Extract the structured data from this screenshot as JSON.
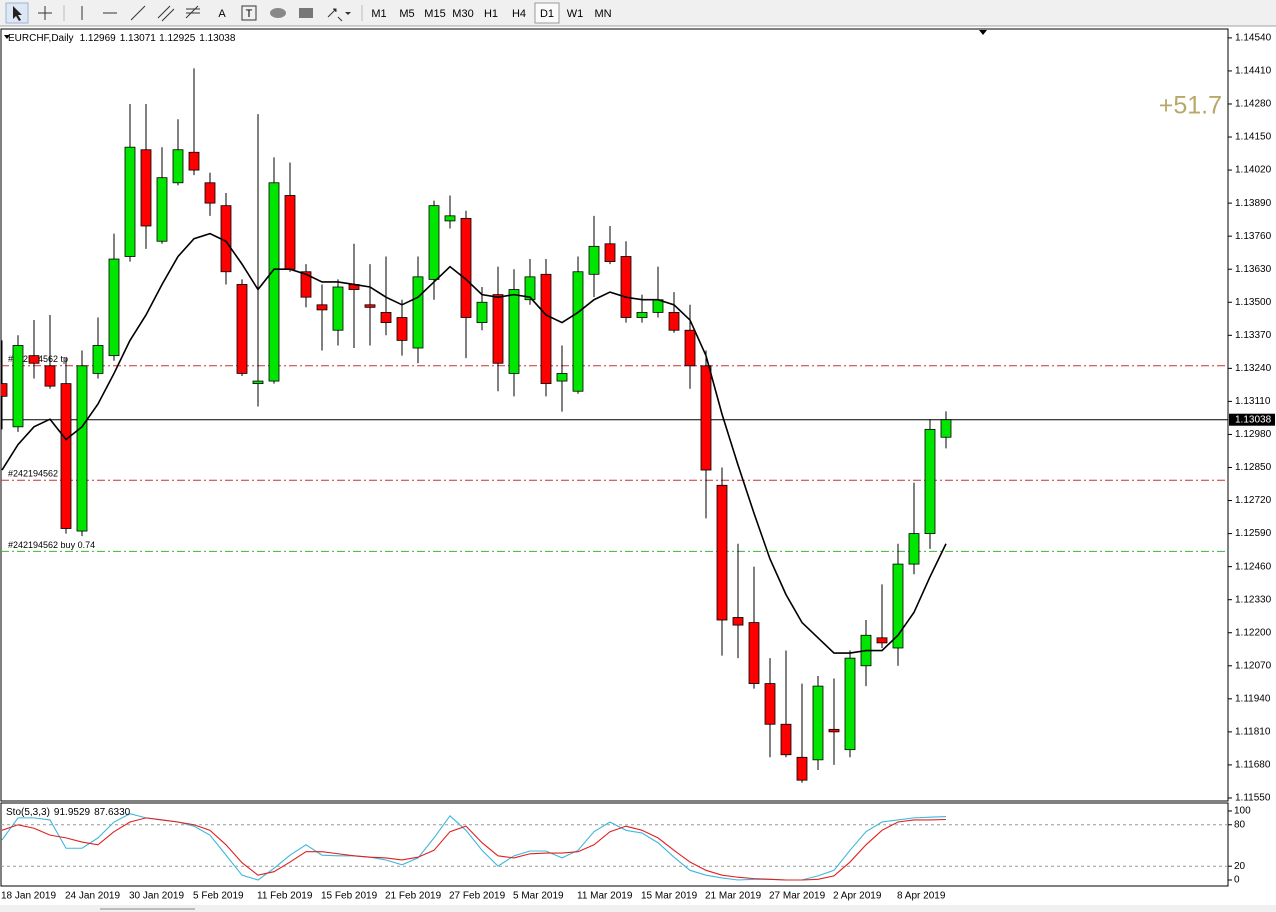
{
  "toolbar": {
    "text_tools": [
      "A",
      "T"
    ],
    "timeframes": [
      "M1",
      "M5",
      "M15",
      "M30",
      "H1",
      "H4",
      "D1",
      "W1",
      "MN"
    ],
    "active": "D1"
  },
  "chart_data": {
    "type": "candlestick",
    "title": "EURCHF,Daily",
    "categories": [
      "18 Jan 2019",
      null,
      null,
      null,
      "24 Jan 2019",
      null,
      null,
      null,
      "30 Jan 2019",
      null,
      null,
      null,
      "5 Feb 2019",
      null,
      null,
      null,
      "11 Feb 2019",
      null,
      null,
      null,
      "15 Feb 2019",
      null,
      null,
      null,
      "21 Feb 2019",
      null,
      null,
      null,
      "27 Feb 2019",
      null,
      null,
      null,
      "5 Mar 2019",
      null,
      null,
      null,
      "11 Mar 2019",
      null,
      null,
      null,
      "15 Mar 2019",
      null,
      null,
      null,
      "21 Mar 2019",
      null,
      null,
      null,
      "27 Mar 2019",
      null,
      null,
      null,
      "2 Apr 2019",
      null,
      null,
      null,
      "8 Apr 2019",
      null,
      null,
      null
    ],
    "open": [
      1.1318,
      1.1301,
      1.1329,
      1.1325,
      1.1318,
      1.126,
      1.1322,
      1.1329,
      1.1368,
      1.141,
      1.1374,
      1.1397,
      1.1409,
      1.1397,
      1.1388,
      1.1357,
      1.1318,
      1.1319,
      1.1392,
      1.1362,
      1.1349,
      1.1339,
      1.1357,
      1.1349,
      1.1346,
      1.1344,
      1.1332,
      1.1359,
      1.1382,
      1.1383,
      1.1342,
      1.1353,
      1.1322,
      1.1351,
      1.1361,
      1.1319,
      1.1315,
      1.1361,
      1.1373,
      1.1368,
      1.1344,
      1.1346,
      1.1346,
      1.1339,
      1.1325,
      1.1278,
      1.1226,
      1.1224,
      1.12,
      1.1184,
      1.1171,
      1.117,
      1.1182,
      1.1174,
      1.1207,
      1.1218,
      1.1214,
      1.1247,
      1.1259,
      1.12969
    ],
    "high": [
      1.1335,
      1.1337,
      1.1343,
      1.1345,
      1.1328,
      1.1331,
      1.1344,
      1.1377,
      1.1428,
      1.1428,
      1.1411,
      1.1422,
      1.1442,
      1.1401,
      1.1393,
      1.1359,
      1.1424,
      1.1407,
      1.1405,
      1.1365,
      1.1357,
      1.1359,
      1.1373,
      1.1365,
      1.1368,
      1.1351,
      1.1368,
      1.139,
      1.1392,
      1.1386,
      1.1356,
      1.1364,
      1.1363,
      1.1367,
      1.1367,
      1.1333,
      1.1368,
      1.1384,
      1.138,
      1.1374,
      1.1353,
      1.1364,
      1.1354,
      1.1349,
      1.1331,
      1.1285,
      1.1255,
      1.1246,
      1.121,
      1.1213,
      1.12,
      1.1203,
      1.1202,
      1.1213,
      1.1225,
      1.1239,
      1.1255,
      1.1279,
      1.1304,
      1.13071
    ],
    "low": [
      1.13,
      1.1299,
      1.132,
      1.1316,
      1.1259,
      1.1258,
      1.132,
      1.1327,
      1.1366,
      1.1371,
      1.1373,
      1.1396,
      1.14,
      1.1384,
      1.1357,
      1.1321,
      1.1309,
      1.1318,
      1.1362,
      1.1348,
      1.1331,
      1.1333,
      1.1332,
      1.1333,
      1.1337,
      1.1329,
      1.1326,
      1.1351,
      1.1379,
      1.1328,
      1.1339,
      1.1315,
      1.1313,
      1.1349,
      1.1313,
      1.1307,
      1.1314,
      1.1352,
      1.1365,
      1.1342,
      1.1342,
      1.1344,
      1.1338,
      1.1316,
      1.1265,
      1.1211,
      1.121,
      1.1198,
      1.1171,
      1.1171,
      1.1161,
      1.1166,
      1.1168,
      1.1171,
      1.1199,
      1.1214,
      1.1207,
      1.1243,
      1.1253,
      1.12925
    ],
    "close": [
      1.1313,
      1.1333,
      1.1326,
      1.1317,
      1.1261,
      1.1325,
      1.1333,
      1.1367,
      1.1411,
      1.138,
      1.1399,
      1.141,
      1.1402,
      1.1389,
      1.1362,
      1.1322,
      1.1319,
      1.1397,
      1.1363,
      1.1352,
      1.1347,
      1.1356,
      1.1355,
      1.1348,
      1.1342,
      1.1335,
      1.136,
      1.1388,
      1.1384,
      1.1344,
      1.135,
      1.1326,
      1.1355,
      1.136,
      1.1318,
      1.1322,
      1.1362,
      1.1372,
      1.1366,
      1.1344,
      1.1346,
      1.1351,
      1.1339,
      1.1325,
      1.1284,
      1.1225,
      1.1223,
      1.12,
      1.1184,
      1.1172,
      1.1162,
      1.1199,
      1.1181,
      1.121,
      1.1219,
      1.1216,
      1.1247,
      1.1259,
      1.13,
      1.13038
    ],
    "up_color": "#00e600",
    "down_color": "#ff0000",
    "overlays": [
      {
        "color": "#000000",
        "values": [
          1.1284,
          1.1294,
          1.1301,
          1.1304,
          1.1296,
          1.1301,
          1.131,
          1.1322,
          1.1335,
          1.1345,
          1.1357,
          1.1368,
          1.1375,
          1.1377,
          1.1374,
          1.1365,
          1.1355,
          1.1363,
          1.1363,
          1.1361,
          1.1358,
          1.1358,
          1.1357,
          1.1356,
          1.1352,
          1.1349,
          1.1352,
          1.1358,
          1.1364,
          1.1359,
          1.1353,
          1.1352,
          1.1353,
          1.1352,
          1.1345,
          1.1342,
          1.1346,
          1.1351,
          1.1354,
          1.1352,
          1.1351,
          1.1351,
          1.1349,
          1.1343,
          1.1329,
          1.1306,
          1.1286,
          1.1267,
          1.1249,
          1.1235,
          1.1224,
          1.1218,
          1.1212,
          1.1212,
          1.1213,
          1.1213,
          1.1219,
          1.1228,
          1.1242,
          1.1255
        ]
      }
    ],
    "price_lines": [
      {
        "label": "#242194562 tp",
        "value": 1.1325,
        "color": "#c83232"
      },
      {
        "label": "#242194562",
        "value": 1.128,
        "color": "#c83232"
      },
      {
        "label": "#242194562 buy 0.74",
        "value": 1.1252,
        "color": "#3cb43c"
      }
    ],
    "annotation": "+51.7",
    "ylim": [
      1.11542,
      1.14571
    ],
    "yticks": [
      {
        "value": 1.1454,
        "label": "1.14540"
      },
      {
        "value": 1.1441,
        "label": "1.14410"
      },
      {
        "value": 1.1428,
        "label": "1.14280"
      },
      {
        "value": 1.1415,
        "label": "1.14150"
      },
      {
        "value": 1.1402,
        "label": "1.14020"
      },
      {
        "value": 1.1389,
        "label": "1.13890"
      },
      {
        "value": 1.1376,
        "label": "1.13760"
      },
      {
        "value": 1.1363,
        "label": "1.13630"
      },
      {
        "value": 1.135,
        "label": "1.13500"
      },
      {
        "value": 1.1337,
        "label": "1.13370"
      },
      {
        "value": 1.1324,
        "label": "1.13240"
      },
      {
        "value": 1.1311,
        "label": "1.13110"
      },
      {
        "value": 1.1298,
        "label": "1.12980"
      },
      {
        "value": 1.1285,
        "label": "1.12850"
      },
      {
        "value": 1.1272,
        "label": "1.12720"
      },
      {
        "value": 1.1259,
        "label": "1.12590"
      },
      {
        "value": 1.1246,
        "label": "1.12460"
      },
      {
        "value": 1.1233,
        "label": "1.12330"
      },
      {
        "value": 1.122,
        "label": "1.12200"
      },
      {
        "value": 1.1207,
        "label": "1.12070"
      },
      {
        "value": 1.1194,
        "label": "1.11940"
      },
      {
        "value": 1.1181,
        "label": "1.11810"
      },
      {
        "value": 1.1168,
        "label": "1.11680"
      },
      {
        "value": 1.1155,
        "label": "1.11550"
      }
    ],
    "indicator": {
      "title": "Sto(5,3,3)",
      "readout": [
        "91.9529",
        "87.6330"
      ],
      "series": [
        {
          "color": "#3cb8dc",
          "values": [
            58,
            90,
            90,
            87,
            46,
            46,
            61,
            84,
            96,
            90,
            87,
            84,
            78,
            65,
            36,
            7,
            0,
            17,
            36,
            51,
            36,
            35,
            35,
            33,
            29,
            22,
            32,
            61,
            93,
            72,
            43,
            20,
            35,
            42,
            42,
            32,
            43,
            70,
            84,
            72,
            68,
            54,
            33,
            14,
            7,
            3,
            0,
            1,
            1,
            0,
            0,
            6,
            14,
            43,
            70,
            84,
            87,
            90,
            91,
            91.9529
          ]
        },
        {
          "color": "#e02020",
          "values": [
            72,
            80,
            75,
            65,
            61,
            55,
            51,
            70,
            84,
            90,
            87,
            84,
            80,
            72,
            51,
            25,
            7,
            12,
            26,
            41,
            41,
            38,
            35,
            33,
            32,
            29,
            33,
            43,
            70,
            78,
            54,
            35,
            32,
            38,
            39,
            39,
            41,
            51,
            70,
            78,
            72,
            61,
            43,
            26,
            14,
            7,
            4,
            2,
            1,
            0,
            0,
            1,
            6,
            26,
            51,
            72,
            84,
            87,
            87,
            87.633
          ]
        }
      ],
      "ylim": [
        -8.7,
        110.1
      ],
      "yticks": [
        100,
        80,
        20,
        0
      ],
      "levels": [
        20,
        80
      ]
    }
  }
}
